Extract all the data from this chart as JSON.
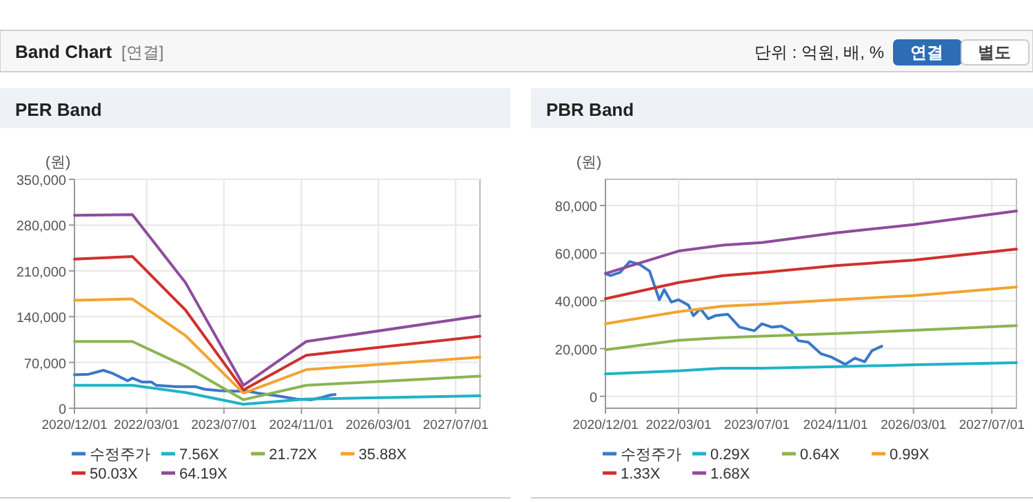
{
  "chart_data": [
    {
      "type": "other",
      "title": "Band Chart",
      "annotations": [
        "[연결]",
        "단위 : 억원, 배, %",
        "연결",
        "별도"
      ]
    },
    {
      "type": "line",
      "title": "PER Band",
      "ylabel": "(원)",
      "xlim": [
        "2020-12-01",
        "2027-12-01"
      ],
      "xticks": [
        {
          "value": "2020-12-01",
          "label": "2020/12/01"
        },
        {
          "value": "2022-03-01",
          "label": "2022/03/01"
        },
        {
          "value": "2023-07-01",
          "label": "2023/07/01"
        },
        {
          "value": "2024-11-01",
          "label": "2024/11/01"
        },
        {
          "value": "2026-03-01",
          "label": "2026/03/01"
        },
        {
          "value": "2027-07-01",
          "label": "2027/07/01"
        }
      ],
      "ylim": [
        0,
        350000
      ],
      "yticks": [
        {
          "value": 0,
          "label": "0"
        },
        {
          "value": 70000,
          "label": "70,000"
        },
        {
          "value": 140000,
          "label": "140,000"
        },
        {
          "value": 210000,
          "label": "210,000"
        },
        {
          "value": 280000,
          "label": "280,000"
        },
        {
          "value": 350000,
          "label": "350,000"
        }
      ],
      "grid": true,
      "legend": "bottom",
      "marker": "none",
      "line_style": "solid",
      "series": [
        {
          "name": "수정주가",
          "color": "#3a78c8",
          "x": [
            "2020-12-01",
            "2021-03-01",
            "2021-06-01",
            "2021-08-01",
            "2021-11-01",
            "2021-12-01",
            "2022-02-01",
            "2022-04-01",
            "2022-05-01",
            "2022-09-01",
            "2023-01-01",
            "2023-03-01",
            "2023-06-01",
            "2023-09-01",
            "2023-12-01",
            "2024-02-01",
            "2024-06-01",
            "2024-10-01",
            "2025-01-01",
            "2025-03-01",
            "2025-05-01",
            "2025-06-01"
          ],
          "values": [
            51000,
            52000,
            58000,
            53000,
            42000,
            46000,
            40000,
            40000,
            35000,
            33000,
            33000,
            29000,
            27000,
            26000,
            26000,
            23000,
            19000,
            14000,
            13000,
            16000,
            20000,
            21000
          ]
        },
        {
          "name": "7.56X",
          "color": "#1fb3c6",
          "x": [
            "2020-12-01",
            "2021-12-01",
            "2022-11-01",
            "2023-11-01",
            "2024-12-01",
            "2027-12-01"
          ],
          "values": [
            35000,
            35000,
            24000,
            6000,
            14000,
            19000
          ]
        },
        {
          "name": "21.72X",
          "color": "#8cb452",
          "x": [
            "2020-12-01",
            "2021-12-01",
            "2022-11-01",
            "2023-11-01",
            "2024-12-01",
            "2027-12-01"
          ],
          "values": [
            102000,
            102000,
            64000,
            13000,
            35000,
            49000
          ]
        },
        {
          "name": "35.88X",
          "color": "#f2a431",
          "x": [
            "2020-12-01",
            "2021-12-01",
            "2022-11-01",
            "2023-11-01",
            "2024-12-01",
            "2027-12-01"
          ],
          "values": [
            165000,
            167000,
            111000,
            23000,
            59000,
            78000
          ]
        },
        {
          "name": "50.03X",
          "color": "#d0302c",
          "x": [
            "2020-12-01",
            "2021-12-01",
            "2022-11-01",
            "2023-11-01",
            "2024-12-01",
            "2027-12-01"
          ],
          "values": [
            228000,
            232000,
            150000,
            28000,
            81000,
            110000
          ]
        },
        {
          "name": "64.19X",
          "color": "#8e4c9c",
          "x": [
            "2020-12-01",
            "2021-12-01",
            "2022-11-01",
            "2023-11-01",
            "2024-12-01",
            "2027-12-01"
          ],
          "values": [
            295000,
            296000,
            192000,
            35000,
            102000,
            141000
          ]
        }
      ]
    },
    {
      "type": "line",
      "title": "PBR Band",
      "ylabel": "(원)",
      "xlim": [
        "2020-12-01",
        "2027-12-01"
      ],
      "xticks": [
        {
          "value": "2020-12-01",
          "label": "2020/12/01"
        },
        {
          "value": "2022-03-01",
          "label": "2022/03/01"
        },
        {
          "value": "2023-07-01",
          "label": "2023/07/01"
        },
        {
          "value": "2024-11-01",
          "label": "2024/11/01"
        },
        {
          "value": "2026-03-01",
          "label": "2026/03/01"
        },
        {
          "value": "2027-07-01",
          "label": "2027/07/01"
        }
      ],
      "ylim": [
        -5000,
        91000
      ],
      "yticks": [
        {
          "value": 0,
          "label": "0"
        },
        {
          "value": 20000,
          "label": "20,000"
        },
        {
          "value": 40000,
          "label": "40,000"
        },
        {
          "value": 60000,
          "label": "60,000"
        },
        {
          "value": 80000,
          "label": "80,000"
        }
      ],
      "grid": true,
      "legend": "bottom",
      "marker": "none",
      "line_style": "solid",
      "series": [
        {
          "name": "수정주가",
          "color": "#3a78c8",
          "x": [
            "2020-12-01",
            "2021-01-01",
            "2021-03-01",
            "2021-05-01",
            "2021-07-01",
            "2021-09-01",
            "2021-10-01",
            "2021-11-01",
            "2021-12-01",
            "2022-01-15",
            "2022-03-01",
            "2022-05-01",
            "2022-06-01",
            "2022-07-15",
            "2022-09-01",
            "2022-10-15",
            "2023-01-01",
            "2023-03-15",
            "2023-06-15",
            "2023-08-01",
            "2023-10-01",
            "2023-12-01",
            "2024-02-01",
            "2024-03-15",
            "2024-05-15",
            "2024-08-01",
            "2024-10-01",
            "2025-01-01",
            "2025-03-01",
            "2025-05-01",
            "2025-06-15",
            "2025-08-15"
          ],
          "values": [
            51500,
            50600,
            51900,
            56500,
            55300,
            52500,
            46600,
            40500,
            44700,
            39500,
            40500,
            38200,
            33800,
            36700,
            32500,
            33800,
            34400,
            29000,
            27500,
            30400,
            29000,
            29400,
            27100,
            23300,
            22700,
            17900,
            16600,
            13400,
            16000,
            14500,
            19100,
            21000
          ]
        },
        {
          "name": "0.29X",
          "color": "#1fb3c6",
          "x": [
            "2020-12-01",
            "2022-03-01",
            "2022-12-01",
            "2023-08-01",
            "2024-11-01",
            "2026-03-01",
            "2027-12-01"
          ],
          "values": [
            9400,
            10700,
            11800,
            11800,
            12400,
            13200,
            14100
          ]
        },
        {
          "name": "0.64X",
          "color": "#8cb452",
          "x": [
            "2020-12-01",
            "2022-03-01",
            "2022-12-01",
            "2023-08-01",
            "2024-11-01",
            "2026-03-01",
            "2027-12-01"
          ],
          "values": [
            19500,
            23500,
            24600,
            25200,
            26300,
            27700,
            29600
          ]
        },
        {
          "name": "0.99X",
          "color": "#f2a431",
          "x": [
            "2020-12-01",
            "2022-03-01",
            "2022-12-01",
            "2023-08-01",
            "2024-11-01",
            "2026-03-01",
            "2027-12-01"
          ],
          "values": [
            30400,
            35500,
            37800,
            38600,
            40500,
            42200,
            45800
          ]
        },
        {
          "name": "1.33X",
          "color": "#d0302c",
          "x": [
            "2020-12-01",
            "2022-03-01",
            "2022-12-01",
            "2023-08-01",
            "2024-11-01",
            "2026-03-01",
            "2027-12-01"
          ],
          "values": [
            40900,
            47700,
            50600,
            51900,
            54800,
            57100,
            61700
          ]
        },
        {
          "name": "1.68X",
          "color": "#8e4c9c",
          "x": [
            "2020-12-01",
            "2022-03-01",
            "2022-12-01",
            "2023-08-01",
            "2024-11-01",
            "2026-03-01",
            "2027-12-01"
          ],
          "values": [
            51500,
            60900,
            63400,
            64500,
            68500,
            72000,
            77700
          ]
        }
      ]
    }
  ]
}
